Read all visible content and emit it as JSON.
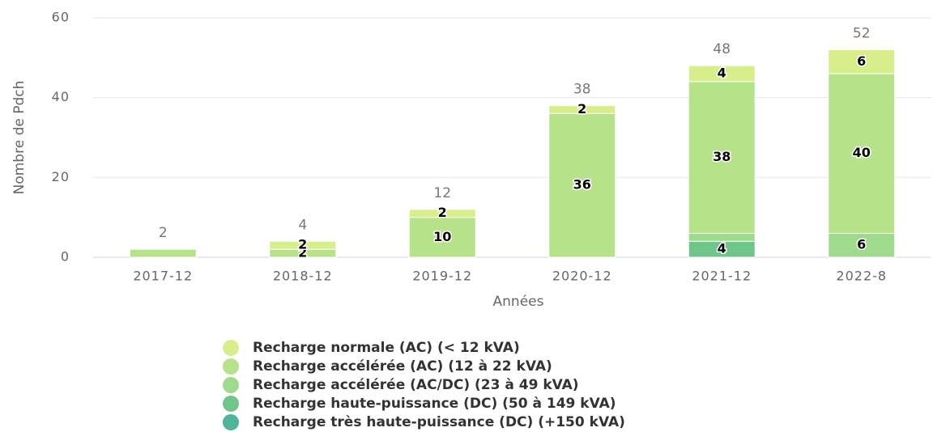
{
  "chart_data": {
    "type": "stacked_bar",
    "categories": [
      "2017-12",
      "2018-12",
      "2019-12",
      "2020-12",
      "2021-12",
      "2022-8"
    ],
    "series": [
      {
        "name": "Recharge normale (AC) (< 12 kVA)",
        "color": "#d8ee8c",
        "values": [
          null,
          2,
          2,
          2,
          4,
          6
        ],
        "value_labels": [
          null,
          "2",
          "2",
          "2",
          "4",
          "6"
        ]
      },
      {
        "name": "Recharge accélérée (AC) (12 à 22 kVA)",
        "color": "#b6e28a",
        "values": [
          2,
          2,
          10,
          36,
          38,
          40
        ],
        "value_labels": [
          null,
          "2",
          "10",
          "36",
          "38",
          "40"
        ]
      },
      {
        "name": "Recharge accélérée (AC/DC) (23 à 49 kVA)",
        "color": "#9fdb8c",
        "values": [
          null,
          null,
          null,
          null,
          2,
          6
        ],
        "value_labels": [
          null,
          null,
          null,
          null,
          null,
          "6"
        ]
      },
      {
        "name": "Recharge haute-puissance (DC) (50 à 149 kVA)",
        "color": "#70c68a",
        "values": [
          null,
          null,
          null,
          null,
          4,
          null
        ],
        "value_labels": [
          null,
          null,
          null,
          null,
          "4",
          null
        ]
      },
      {
        "name": "Recharge très haute-puissance (DC) (+150 kVA)",
        "color": "#4fb59a",
        "values": [
          null,
          null,
          null,
          null,
          null,
          null
        ],
        "value_labels": [
          null,
          null,
          null,
          null,
          null,
          null
        ]
      }
    ],
    "totals": [
      2,
      4,
      12,
      38,
      48,
      52
    ],
    "ylim": [
      0,
      60
    ],
    "yticks": [
      0,
      20,
      40,
      60
    ],
    "grid": true,
    "x_label": "Années",
    "y_label": "Nombre de Pdch"
  }
}
